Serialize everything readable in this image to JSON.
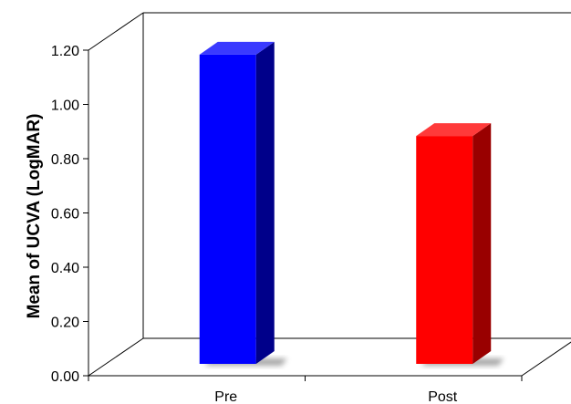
{
  "chart_data": {
    "type": "bar",
    "title": "",
    "xlabel": "",
    "ylabel": "Mean of UCVA (LogMAR)",
    "categories": [
      "Pre",
      "Post"
    ],
    "values": [
      1.14,
      0.84
    ],
    "ylim": [
      0,
      1.2
    ],
    "yticks": [
      "0.00",
      "0.20",
      "0.40",
      "0.60",
      "0.80",
      "1.00",
      "1.20"
    ],
    "grid": false,
    "legend": "none",
    "style": "3d-column",
    "colors": {
      "Pre": {
        "front": "#0000ff",
        "side": "#00008a",
        "top": "#3a3aff"
      },
      "Post": {
        "front": "#ff0000",
        "side": "#990000",
        "top": "#ff3a3a"
      }
    }
  }
}
